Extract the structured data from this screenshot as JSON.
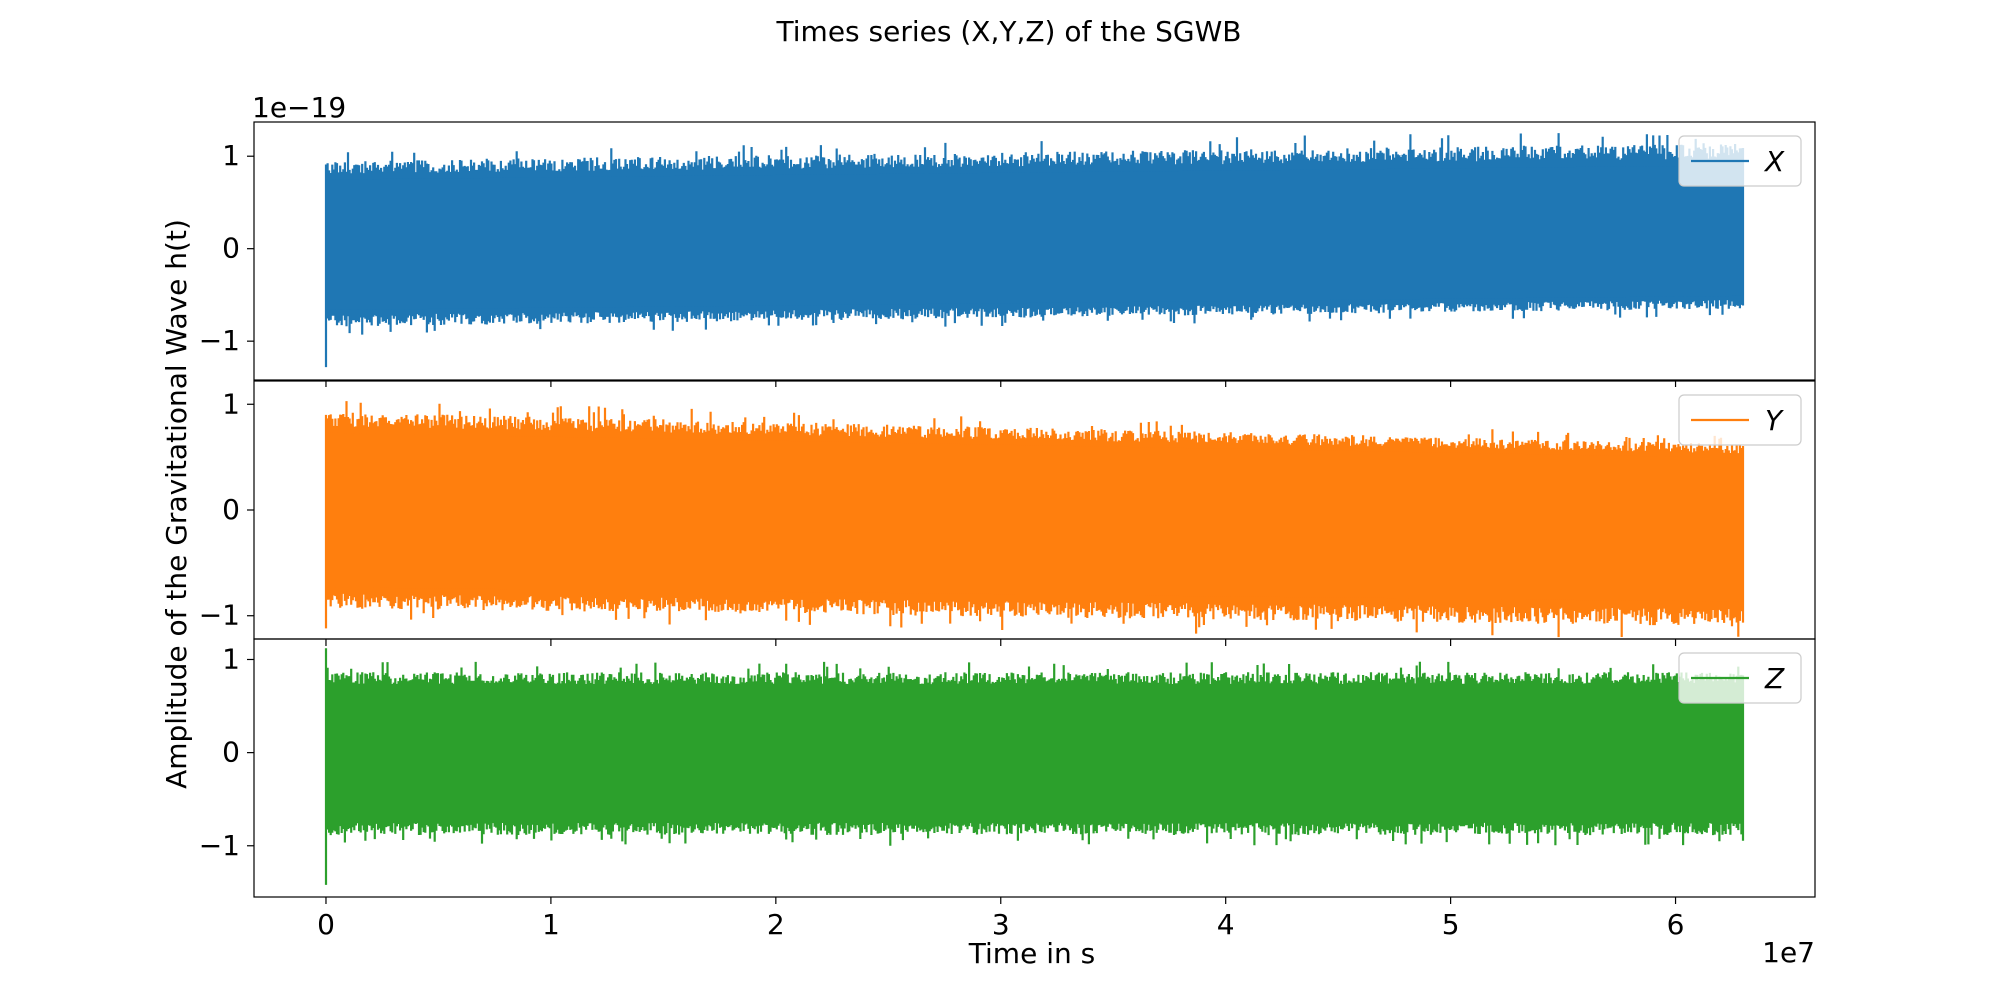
{
  "chart_data": {
    "type": "line",
    "title": "Times series (X,Y,Z) of the SGWB",
    "xlabel": "Time in s",
    "ylabel": "Amplitude of the Gravitational Wave h(t)",
    "x_offset_label": "1e7",
    "y_offset_label": "1e−19",
    "x_range": [
      0,
      63000000.0
    ],
    "xlim": [
      -3200000.0,
      66200000.0
    ],
    "x_ticks": [
      0,
      1,
      2,
      3,
      4,
      5,
      6
    ],
    "y_ticks": [
      -1,
      0,
      1
    ],
    "grid": false,
    "legend_position": "top-right",
    "panels": [
      {
        "name": "X",
        "color": "#1f77b4",
        "ylim": [
          -1.42,
          1.37
        ],
        "envelope_start": {
          "upper": 0.88,
          "lower": -0.78
        },
        "envelope_end": {
          "upper": 1.06,
          "lower": -0.6
        },
        "y_extremes": {
          "min": -1.28,
          "max": 1.25
        }
      },
      {
        "name": "Y",
        "color": "#ff7f0e",
        "ylim": [
          -1.22,
          1.22
        ],
        "envelope_start": {
          "upper": 0.86,
          "lower": -0.86
        },
        "envelope_end": {
          "upper": 0.58,
          "lower": -1.02
        },
        "y_extremes": {
          "min": -1.12,
          "max": 1.12
        }
      },
      {
        "name": "Z",
        "color": "#2ca02c",
        "ylim": [
          -1.55,
          1.22
        ],
        "envelope_start": {
          "upper": 0.8,
          "lower": -0.82
        },
        "envelope_end": {
          "upper": 0.8,
          "lower": -0.82
        },
        "y_extremes": {
          "min": -1.42,
          "max": 1.12
        }
      }
    ]
  }
}
